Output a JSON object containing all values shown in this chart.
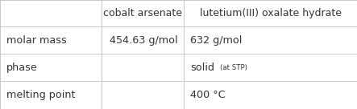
{
  "col_headers": [
    "cobalt arsenate",
    "lutetium(III) oxalate hydrate"
  ],
  "row_headers": [
    "molar mass",
    "phase",
    "melting point"
  ],
  "cells": [
    [
      "454.63 g/mol",
      "632 g/mol"
    ],
    [
      "",
      "solid"
    ],
    [
      "",
      "400 °C"
    ]
  ],
  "col_splits": [
    0.0,
    0.285,
    0.515,
    1.0
  ],
  "row_splits": [
    0.0,
    0.245,
    0.495,
    0.745,
    1.0
  ],
  "bg_color": "#ffffff",
  "text_color": "#333333",
  "line_color": "#c8c8c8",
  "font_size_header": 9.0,
  "font_size_cell": 9.2,
  "font_size_annot": 6.2,
  "molar_mass_right_align": true
}
